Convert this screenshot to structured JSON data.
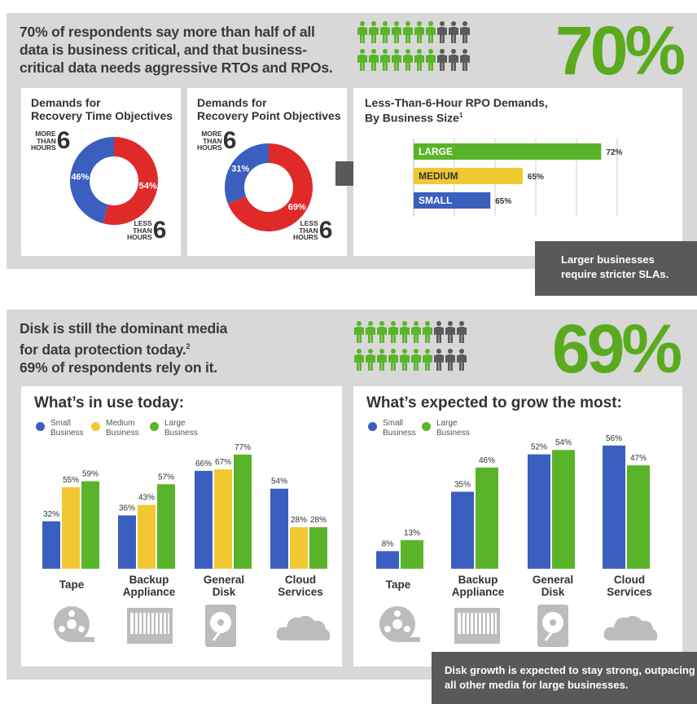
{
  "colors": {
    "blue": "#3a5fbf",
    "yellow": "#f0c832",
    "green": "#5ab42a",
    "red": "#e02a2a",
    "dark": "#58595b",
    "grey_person": "#5a5a5a"
  },
  "section1": {
    "headline": [
      "70% of respondents say more than half of all",
      "data is business critical, and that business-",
      "critical data needs aggressive RTOs and RPOs."
    ],
    "big_percent": "70%",
    "people": {
      "total": 20,
      "highlighted": 14
    },
    "rto": {
      "title": [
        "Demands for",
        "Recovery Time Objectives"
      ],
      "more_small": [
        "MORE",
        "THAN",
        "HOURS"
      ],
      "more_num": "6",
      "less_small": [
        "LESS",
        "THAN",
        "HOURS"
      ],
      "less_num": "6"
    },
    "rpo": {
      "title": [
        "Demands for",
        "Recovery Point Objectives"
      ],
      "more_small": [
        "MORE",
        "THAN",
        "HOURS"
      ],
      "more_num": "6",
      "less_small": [
        "LESS",
        "THAN",
        "HOURS"
      ],
      "less_num": "6"
    },
    "rpo_size": {
      "title": "Less-Than-6-Hour RPO Demands,",
      "title2": "By Business Size",
      "footnote": "1"
    },
    "note": [
      "Larger businesses",
      "require stricter SLAs."
    ]
  },
  "section2": {
    "headline": [
      "Disk is still the dominant media",
      "for data protection today.",
      "69% of respondents rely on it."
    ],
    "footnote": "2",
    "big_percent": "69%",
    "people": {
      "total": 20,
      "highlighted": 13.8
    },
    "today": {
      "title": "What’s in use today:",
      "legend": [
        [
          "Small",
          "Business"
        ],
        [
          "Medium",
          "Business"
        ],
        [
          "Large",
          "Business"
        ]
      ]
    },
    "grow": {
      "title": "What’s expected to grow the most:",
      "legend": [
        [
          "Small",
          "Business"
        ],
        [
          "Large",
          "Business"
        ]
      ]
    },
    "categories": [
      [
        "Tape"
      ],
      [
        "Backup",
        "Appliance"
      ],
      [
        "General",
        "Disk"
      ],
      [
        "Cloud",
        "Services"
      ]
    ],
    "icons": [
      "tape-reel-icon",
      "backup-appliance-icon",
      "hard-disk-icon",
      "cloud-icon"
    ],
    "note": [
      "Disk growth is expected to stay strong, outpacing",
      "all other media for large businesses."
    ]
  },
  "chart_data": [
    {
      "type": "pie",
      "title": "Demands for Recovery Time Objectives",
      "labels": [
        "More than 6 hours",
        "Less than 6 hours"
      ],
      "values": [
        46,
        54
      ],
      "value_labels": [
        "46%",
        "54%"
      ],
      "colors": [
        "#3a5fbf",
        "#e02a2a"
      ]
    },
    {
      "type": "pie",
      "title": "Demands for Recovery Point Objectives",
      "labels": [
        "More than 6 hours",
        "Less than 6 hours"
      ],
      "values": [
        31,
        69
      ],
      "value_labels": [
        "31%",
        "69%"
      ],
      "colors": [
        "#3a5fbf",
        "#e02a2a"
      ]
    },
    {
      "type": "bar",
      "orientation": "horizontal",
      "title": "Less-Than-6-Hour RPO Demands, By Business Size",
      "categories": [
        "LARGE",
        "MEDIUM",
        "SMALL"
      ],
      "values": [
        72,
        65,
        65
      ],
      "value_labels": [
        "72%",
        "65%",
        "65%"
      ],
      "colors": [
        "#5ab42a",
        "#f0c832",
        "#3a5fbf"
      ]
    },
    {
      "type": "bar",
      "title": "What’s in use today:",
      "categories": [
        "Tape",
        "Backup Appliance",
        "General Disk",
        "Cloud Services"
      ],
      "series": [
        {
          "name": "Small Business",
          "values": [
            32,
            36,
            66,
            54
          ],
          "color": "#3a5fbf"
        },
        {
          "name": "Medium Business",
          "values": [
            55,
            43,
            67,
            28
          ],
          "color": "#f0c832"
        },
        {
          "name": "Large Business",
          "values": [
            59,
            57,
            77,
            28
          ],
          "color": "#5ab42a"
        }
      ]
    },
    {
      "type": "bar",
      "title": "What’s expected to grow the most:",
      "categories": [
        "Tape",
        "Backup Appliance",
        "General Disk",
        "Cloud Services"
      ],
      "series": [
        {
          "name": "Small Business",
          "values": [
            8,
            35,
            52,
            56
          ],
          "color": "#3a5fbf"
        },
        {
          "name": "Large Business",
          "values": [
            13,
            46,
            54,
            47
          ],
          "color": "#5ab42a"
        }
      ]
    }
  ]
}
